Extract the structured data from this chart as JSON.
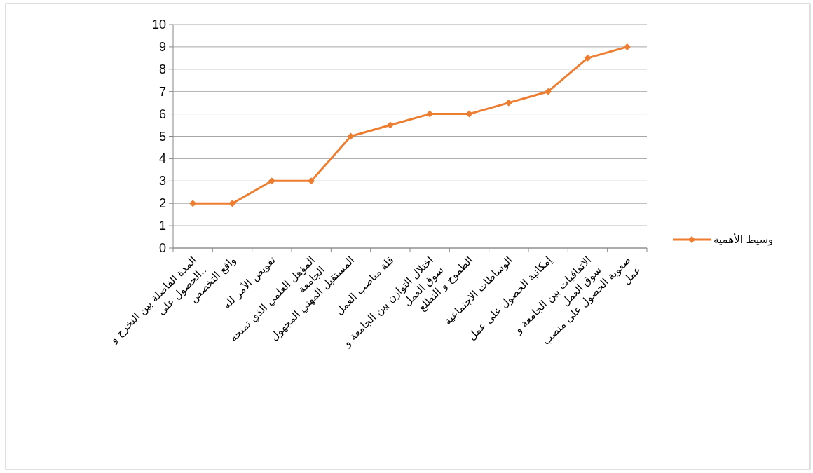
{
  "chart_data": {
    "type": "line",
    "categories": [
      "المدة الفاصلة بين التخرج و الحصول على..",
      "واقع التخصص",
      "تفويض الأمر لله",
      "المؤهل العلمي الذي تمنحه الجامعة",
      "المستقبل المهني المجهول",
      "قلة مناصب العمل",
      "اختلال التوازن بين الجامعة و سوق العمل",
      "الطموح و التطلع",
      "الوساطات الاجتماعية",
      "إمكانية الحصول على عمل",
      "الاتفاقيات بين الجامعة و سوق العمل",
      "صعوبة الحصول على منصب عمل"
    ],
    "series": [
      {
        "name": "وسيط الأهمية",
        "color": "#ed7d31",
        "values": [
          2,
          2,
          3,
          3,
          5,
          5.5,
          6,
          6,
          6.5,
          7,
          8.5,
          9
        ]
      }
    ],
    "ylim": [
      0,
      10
    ],
    "yticks": [
      0,
      1,
      2,
      3,
      4,
      5,
      6,
      7,
      8,
      9,
      10
    ],
    "grid": "y",
    "legend": "right",
    "marker": "diamond",
    "line_style": "solid"
  }
}
